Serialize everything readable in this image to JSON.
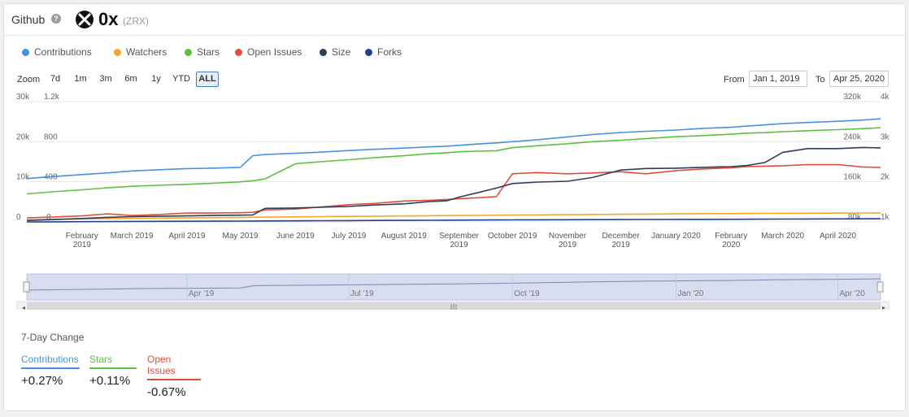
{
  "header": {
    "title": "Github",
    "coin_name": "0x",
    "coin_ticker": "(ZRX)"
  },
  "legend": [
    {
      "label": "Contributions",
      "color": "#4a90e2"
    },
    {
      "label": "Watchers",
      "color": "#f5a623"
    },
    {
      "label": "Stars",
      "color": "#5cc13e"
    },
    {
      "label": "Open Issues",
      "color": "#e04e39"
    },
    {
      "label": "Size",
      "color": "#2c3e5a"
    },
    {
      "label": "Forks",
      "color": "#1f3f8f"
    }
  ],
  "zoom": {
    "label": "Zoom",
    "buttons": [
      "7d",
      "1m",
      "3m",
      "6m",
      "1y",
      "YTD",
      "ALL"
    ],
    "active": "ALL"
  },
  "range": {
    "from_label": "From",
    "from_value": "Jan 1, 2019",
    "to_label": "To",
    "to_value": "Apr 25, 2020"
  },
  "chart_data": {
    "type": "line",
    "x_dates": [
      "2019-01-01",
      "2019-01-15",
      "2019-02-01",
      "2019-02-15",
      "2019-03-01",
      "2019-03-15",
      "2019-04-01",
      "2019-04-15",
      "2019-05-01",
      "2019-05-08",
      "2019-05-15",
      "2019-06-01",
      "2019-06-15",
      "2019-07-01",
      "2019-07-15",
      "2019-08-01",
      "2019-08-15",
      "2019-08-25",
      "2019-09-01",
      "2019-09-10",
      "2019-09-22",
      "2019-10-01",
      "2019-10-15",
      "2019-11-01",
      "2019-11-15",
      "2019-12-01",
      "2019-12-15",
      "2020-01-01",
      "2020-01-15",
      "2020-02-01",
      "2020-02-10",
      "2020-02-20",
      "2020-03-01",
      "2020-03-15",
      "2020-04-01",
      "2020-04-15",
      "2020-04-25"
    ],
    "x_ticks": [
      "February 2019",
      "March 2019",
      "April 2019",
      "May 2019",
      "June 2019",
      "July 2019",
      "August 2019",
      "September 2019",
      "October 2019",
      "November 2019",
      "December 2019",
      "January 2020",
      "February 2020",
      "March 2020",
      "April 2020"
    ],
    "axes": {
      "left1_ticks": [
        "0",
        "10k",
        "20k",
        "30k"
      ],
      "left2_ticks": [
        "0",
        "400",
        "800",
        "1.2k"
      ],
      "right1_ticks": [
        "80k",
        "160k",
        "240k",
        "320k"
      ],
      "right2_ticks": [
        "1k",
        "2k",
        "3k",
        "4k"
      ]
    },
    "series": [
      {
        "name": "Contributions",
        "axis": "left1",
        "range": [
          0,
          30000
        ],
        "color": "#4a90e2",
        "values": [
          10800,
          11300,
          11800,
          12200,
          12700,
          13000,
          13300,
          13400,
          13600,
          16500,
          16800,
          17100,
          17400,
          17800,
          18100,
          18400,
          18700,
          18900,
          19100,
          19400,
          19700,
          20000,
          20500,
          21200,
          21800,
          22300,
          22600,
          22900,
          23300,
          23600,
          23900,
          24200,
          24500,
          24800,
          25100,
          25400,
          25700
        ]
      },
      {
        "name": "Watchers",
        "axis": "left2",
        "range": [
          0,
          1200
        ],
        "color": "#f5a623",
        "values": [
          20,
          25,
          30,
          33,
          36,
          38,
          40,
          42,
          44,
          46,
          48,
          50,
          53,
          55,
          57,
          60,
          62,
          63,
          64,
          65,
          67,
          68,
          70,
          72,
          74,
          76,
          78,
          80,
          82,
          83,
          84,
          85,
          86,
          87,
          88,
          89,
          90
        ]
      },
      {
        "name": "Stars",
        "axis": "left2",
        "range": [
          0,
          1200
        ],
        "color": "#5cc13e",
        "values": [
          280,
          300,
          320,
          340,
          355,
          365,
          375,
          385,
          400,
          410,
          430,
          580,
          600,
          620,
          640,
          660,
          680,
          690,
          700,
          705,
          710,
          740,
          760,
          780,
          800,
          815,
          830,
          850,
          860,
          875,
          885,
          890,
          900,
          910,
          920,
          930,
          940
        ]
      },
      {
        "name": "Open Issues",
        "axis": "left1",
        "range": [
          0,
          30000
        ],
        "color": "#e04e39",
        "values": [
          1000,
          1200,
          1500,
          2000,
          1600,
          1800,
          2200,
          2200,
          2300,
          2400,
          3000,
          3200,
          3700,
          4300,
          4600,
          5200,
          5400,
          5600,
          5800,
          6000,
          6300,
          12000,
          12300,
          12000,
          12200,
          12500,
          12000,
          12800,
          13200,
          13500,
          13800,
          13900,
          14000,
          14300,
          14300,
          13700,
          13600
        ]
      },
      {
        "name": "Size",
        "axis": "right1",
        "range": [
          0,
          320000
        ],
        "color": "#2c3e5a",
        "values": [
          4000,
          6000,
          9000,
          12000,
          14000,
          15000,
          16000,
          17000,
          18000,
          18500,
          36000,
          37000,
          39000,
          41000,
          45000,
          48000,
          54000,
          56000,
          66000,
          76000,
          90000,
          102000,
          106000,
          108000,
          118000,
          138000,
          142000,
          143000,
          145000,
          147000,
          150000,
          158000,
          185000,
          195000,
          195000,
          198000,
          197000
        ]
      },
      {
        "name": "Forks",
        "axis": "right1",
        "range": [
          0,
          320000
        ],
        "color": "#1f3f8f",
        "values": [
          0,
          300,
          600,
          900,
          1200,
          1500,
          1800,
          2000,
          2200,
          2400,
          2600,
          2900,
          3200,
          3500,
          3800,
          4100,
          4400,
          4600,
          4800,
          5000,
          5200,
          5400,
          5600,
          5800,
          6000,
          6200,
          6400,
          6600,
          6800,
          7000,
          7200,
          7400,
          7600,
          7800,
          8000,
          8200,
          8400
        ]
      }
    ],
    "navigator_ticks": [
      "Apr '19",
      "Jul '19",
      "Oct '19",
      "Jan '20",
      "Apr '20"
    ],
    "grid": true,
    "legend_position": "top-left"
  },
  "seven_day": {
    "title": "7-Day Change",
    "items": [
      {
        "label": "Contributions",
        "value": "+0.27%",
        "color": "#4a90e2"
      },
      {
        "label": "Stars",
        "value": "+0.11%",
        "color": "#5cc13e"
      },
      {
        "label": "Open Issues",
        "value": "-0.67%",
        "color": "#e04e39"
      }
    ]
  }
}
